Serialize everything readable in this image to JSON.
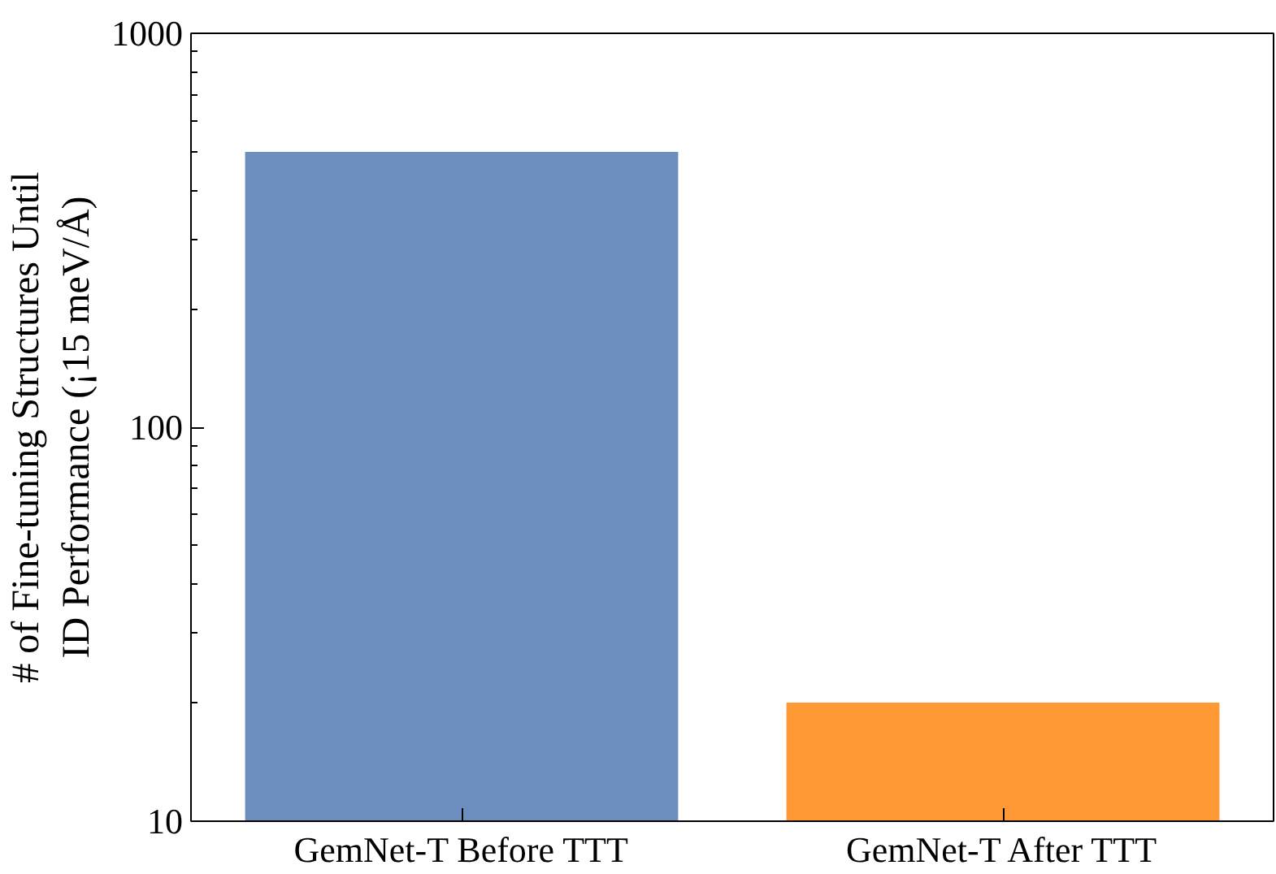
{
  "chart_data": {
    "type": "bar",
    "ylabel": "# of Fine-tuning Structures Until\nID Performance (¡15 meV/Å)",
    "categories": [
      "GemNet-T Before TTT",
      "GemNet-T After TTT"
    ],
    "values": [
      500,
      20
    ],
    "colors": [
      "#6c8ebf",
      "#ff9933"
    ],
    "log": true,
    "ylim": [
      10,
      1000
    ],
    "yticks": [
      10,
      100,
      1000
    ],
    "grid": false
  }
}
